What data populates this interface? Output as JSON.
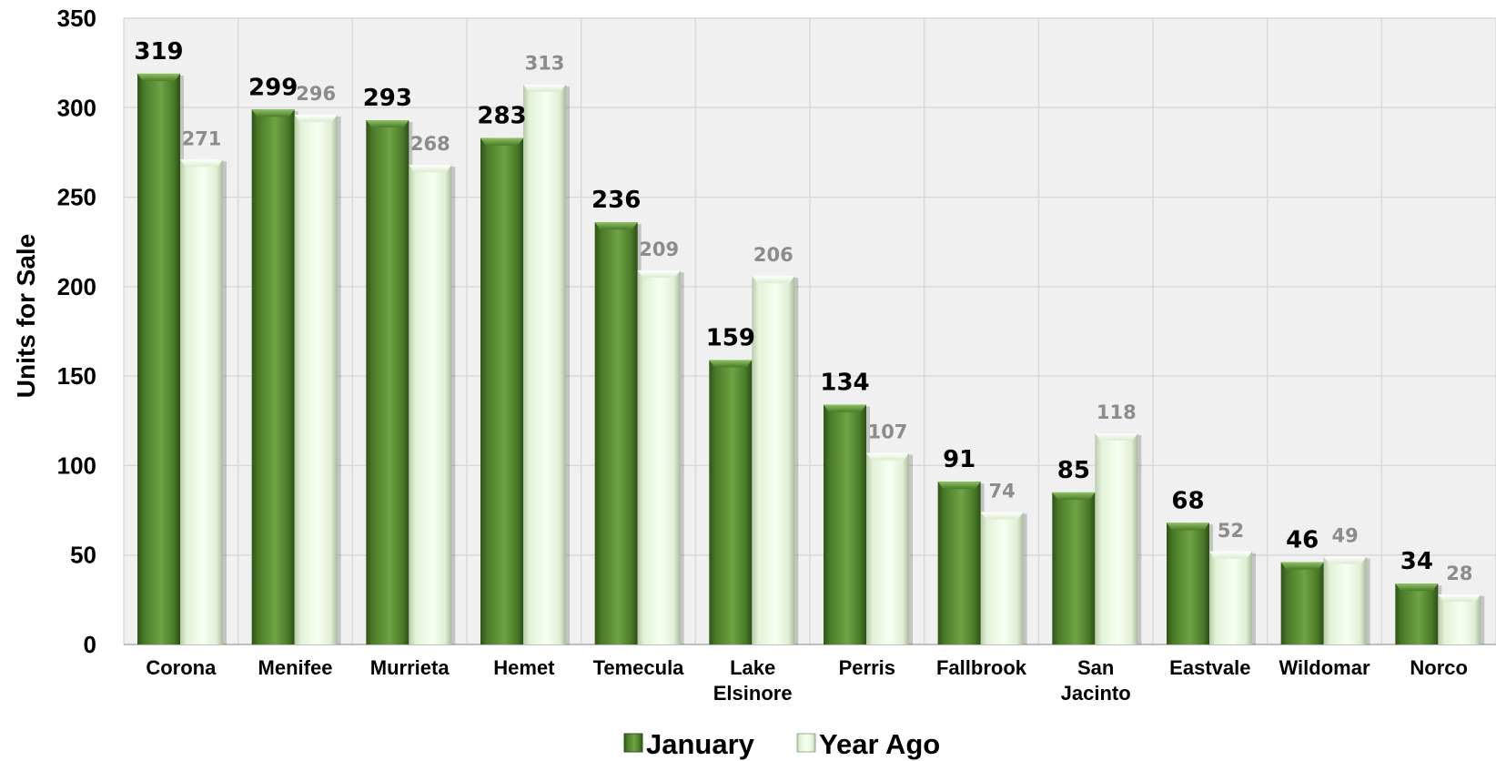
{
  "chart_data": {
    "type": "bar",
    "title": "",
    "xlabel": "",
    "ylabel": "Units for Sale",
    "ylim": [
      0,
      350
    ],
    "yticks": [
      0,
      50,
      100,
      150,
      200,
      250,
      300,
      350
    ],
    "grid": true,
    "legend_position": "bottom",
    "categories": [
      "Corona",
      "Menifee",
      "Murrieta",
      "Hemet",
      "Temecula",
      "Lake Elsinore",
      "Perris",
      "Fallbrook",
      "San Jacinto",
      "Eastvale",
      "Wildomar",
      "Norco"
    ],
    "series": [
      {
        "name": "January",
        "color": "#4f7f2c",
        "values": [
          319,
          299,
          293,
          283,
          236,
          159,
          134,
          91,
          85,
          68,
          46,
          34
        ]
      },
      {
        "name": "Year Ago",
        "color": "#eafae0",
        "values": [
          271,
          296,
          268,
          313,
          209,
          206,
          107,
          74,
          118,
          52,
          49,
          28
        ]
      }
    ]
  },
  "colors": {
    "plot_background": "#f0f0f0",
    "gridline": "#d9d9d9",
    "year_ago_label": "#8c8c8c"
  }
}
